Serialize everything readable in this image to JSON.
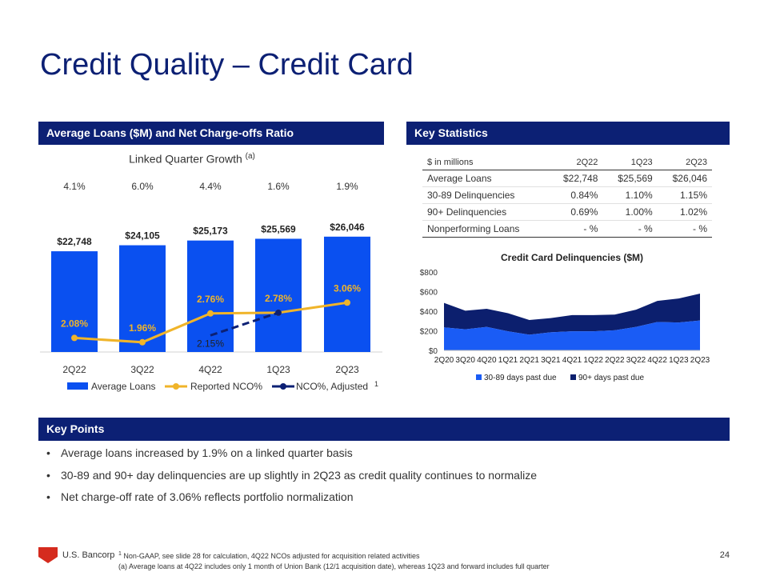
{
  "title": "Credit Quality – Credit Card",
  "left_header": "Average Loans ($M) and Net Charge-offs Ratio",
  "right_header": "Key Statistics",
  "key_points_header": "Key Points",
  "linked_quarter": {
    "label": "Linked Quarter Growth",
    "sup": "(a)",
    "values": [
      "4.1%",
      "6.0%",
      "4.4%",
      "1.6%",
      "1.9%"
    ]
  },
  "colors": {
    "navy": "#0c2074",
    "bar_blue": "#0a50f0",
    "nco_gold": "#f0b429",
    "area_light": "#1a5cf5",
    "area_dark": "#0c1f6e"
  },
  "chart_data": [
    {
      "type": "bar",
      "categories": [
        "2Q22",
        "3Q22",
        "4Q22",
        "1Q23",
        "2Q23"
      ],
      "series": [
        {
          "name": "Average Loans",
          "values": [
            22748,
            24105,
            25173,
            25569,
            26046
          ],
          "labels": [
            "$22,748",
            "$24,105",
            "$25,173",
            "$25,569",
            "$26,046"
          ]
        },
        {
          "name": "Reported NCO%",
          "values": [
            2.08,
            1.96,
            2.76,
            2.78,
            3.06
          ],
          "labels": [
            "2.08%",
            "1.96%",
            "2.76%",
            "2.78%",
            "3.06%"
          ]
        },
        {
          "name": "NCO%, Adjusted",
          "values": [
            null,
            null,
            2.15,
            2.78,
            null
          ],
          "labels": [
            "",
            "",
            "2.15%",
            "",
            ""
          ]
        }
      ],
      "legend_note": "1"
    },
    {
      "type": "area",
      "title": "Credit Card Delinquencies ($M)",
      "categories": [
        "2Q20",
        "3Q20",
        "4Q20",
        "1Q21",
        "2Q21",
        "3Q21",
        "4Q21",
        "1Q22",
        "2Q22",
        "3Q22",
        "4Q22",
        "1Q23",
        "2Q23"
      ],
      "yticks": [
        "$0",
        "$200",
        "$400",
        "$600",
        "$800"
      ],
      "ylim": [
        0,
        800
      ],
      "series": [
        {
          "name": "30-89 days past due",
          "values": [
            235,
            215,
            240,
            195,
            160,
            185,
            195,
            195,
            205,
            240,
            290,
            285,
            305
          ]
        },
        {
          "name": "90+ days past due",
          "values": [
            250,
            190,
            185,
            185,
            150,
            145,
            165,
            165,
            160,
            175,
            215,
            245,
            275
          ]
        }
      ]
    }
  ],
  "key_stats": {
    "headers": [
      "$ in millions",
      "2Q22",
      "1Q23",
      "2Q23"
    ],
    "rows": [
      [
        "Average Loans",
        "$22,748",
        "$25,569",
        "$26,046"
      ],
      [
        "30-89 Delinquencies",
        "0.84%",
        "1.10%",
        "1.15%"
      ],
      [
        "90+ Delinquencies",
        "0.69%",
        "1.00%",
        "1.02%"
      ],
      [
        "Nonperforming Loans",
        "- %",
        "- %",
        "- %"
      ]
    ]
  },
  "key_points": [
    "Average loans increased by 1.9% on a linked quarter basis",
    "30-89 and 90+ day delinquencies are up slightly in 2Q23 as credit quality continues to normalize",
    "Net charge-off rate of 3.06% reflects portfolio normalization"
  ],
  "footer": {
    "brand": "U.S. Bancorp",
    "note1_sup": "1",
    "note1": "Non-GAAP, see slide 28 for calculation, 4Q22 NCOs adjusted for acquisition related activities",
    "note2": "(a) Average loans at 4Q22 includes only 1 month of Union Bank (12/1 acquisition date), whereas 1Q23 and forward includes full quarter",
    "page": "24"
  }
}
